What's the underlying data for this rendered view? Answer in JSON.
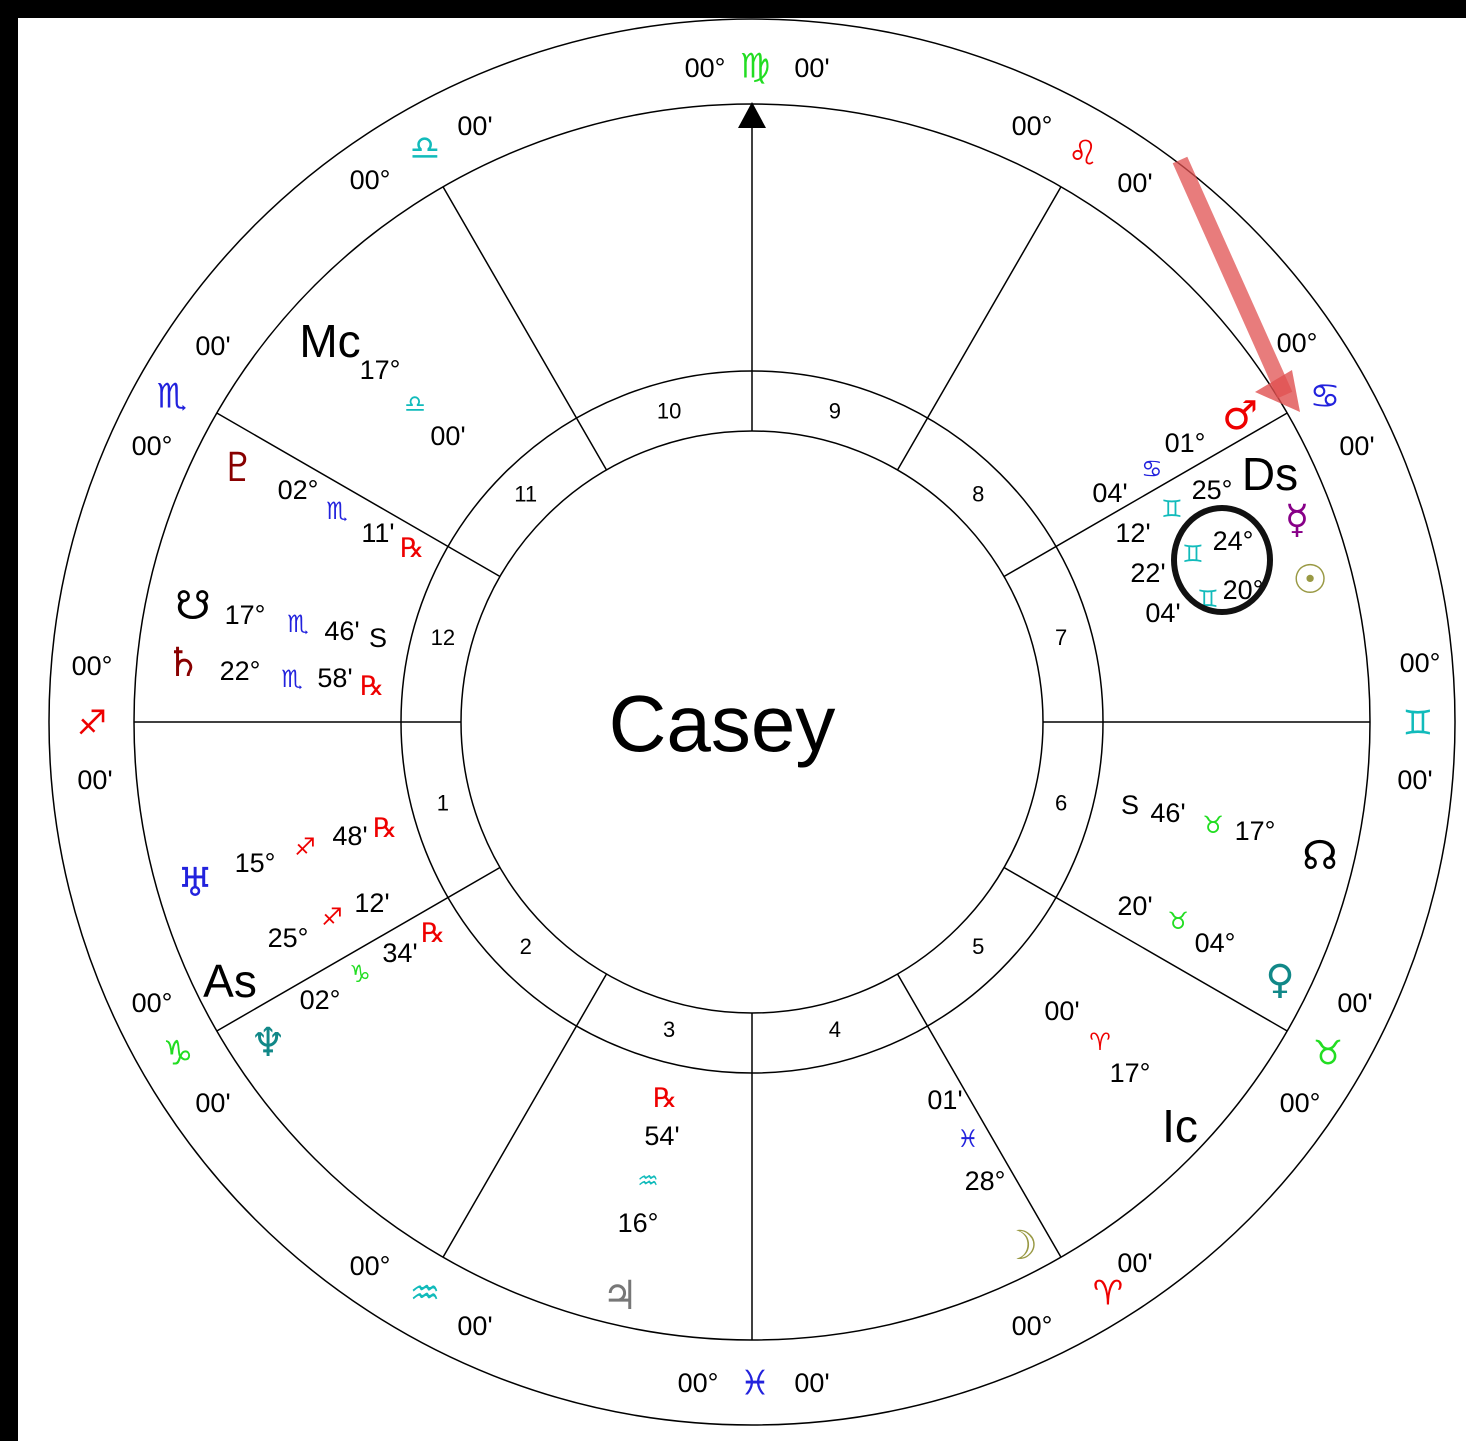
{
  "name": "Casey",
  "signs": [
    {
      "degree": "00°",
      "glyph": "♍",
      "minute": "00'"
    },
    {
      "degree": "00°",
      "glyph": "♎",
      "minute": "00'"
    },
    {
      "degree": "00°",
      "glyph": "♏",
      "minute": "00'"
    },
    {
      "degree": "00°",
      "glyph": "♐",
      "minute": "00'"
    },
    {
      "degree": "00°",
      "glyph": "♑",
      "minute": "00'"
    },
    {
      "degree": "00°",
      "glyph": "♒",
      "minute": "00'"
    },
    {
      "degree": "00°",
      "glyph": "♓",
      "minute": "00'"
    },
    {
      "degree": "00°",
      "glyph": "♈",
      "minute": "00'"
    },
    {
      "degree": "00°",
      "glyph": "♉",
      "minute": "00'"
    },
    {
      "degree": "00°",
      "glyph": "♊",
      "minute": "00'"
    },
    {
      "degree": "00°",
      "glyph": "♋",
      "minute": "00'"
    },
    {
      "degree": "00°",
      "glyph": "♌",
      "minute": "00'"
    }
  ],
  "houses": [
    "1",
    "2",
    "3",
    "4",
    "5",
    "6",
    "7",
    "8",
    "9",
    "10",
    "11",
    "12"
  ],
  "points": [
    {
      "glyph": "Mc",
      "degree": "17°",
      "sign": "♎",
      "minute": "00'"
    },
    {
      "glyph": "♇",
      "degree": "02°",
      "sign": "♏",
      "minute": "11'",
      "flag": "℞"
    },
    {
      "glyph": "☋",
      "degree": "17°",
      "sign": "♏",
      "minute": "46'",
      "flag": "S"
    },
    {
      "glyph": "♄",
      "degree": "22°",
      "sign": "♏",
      "minute": "58'",
      "flag": "℞"
    },
    {
      "glyph": "♅",
      "degree": "15°",
      "sign": "♐",
      "minute": "48'",
      "flag": "℞"
    },
    {
      "glyph": "As",
      "degree": "25°",
      "sign": "♐",
      "minute": "12'"
    },
    {
      "glyph": "♆",
      "degree": "02°",
      "sign": "♑",
      "minute": "34'",
      "flag": "℞"
    },
    {
      "glyph": "♃",
      "degree": "16°",
      "sign": "♒",
      "minute": "54'",
      "flag": "℞"
    },
    {
      "glyph": "☽",
      "degree": "28°",
      "sign": "♓",
      "minute": "01'"
    },
    {
      "glyph": "Ic",
      "degree": "17°",
      "sign": "♈",
      "minute": "00'"
    },
    {
      "glyph": "♀",
      "degree": "04°",
      "sign": "♉",
      "minute": "20'"
    },
    {
      "glyph": "☊",
      "degree": "17°",
      "sign": "♉",
      "minute": "46'",
      "flag": "S"
    },
    {
      "glyph": "☉",
      "degree": "20°",
      "sign": "♊",
      "minute": "04'"
    },
    {
      "glyph": "☿",
      "degree": "24°",
      "sign": "♊",
      "minute": "22'"
    },
    {
      "glyph": "Ds",
      "degree": "25°",
      "sign": "♊",
      "minute": "12'"
    },
    {
      "glyph": "♂",
      "degree": "01°",
      "sign": "♋",
      "minute": "04'"
    }
  ]
}
